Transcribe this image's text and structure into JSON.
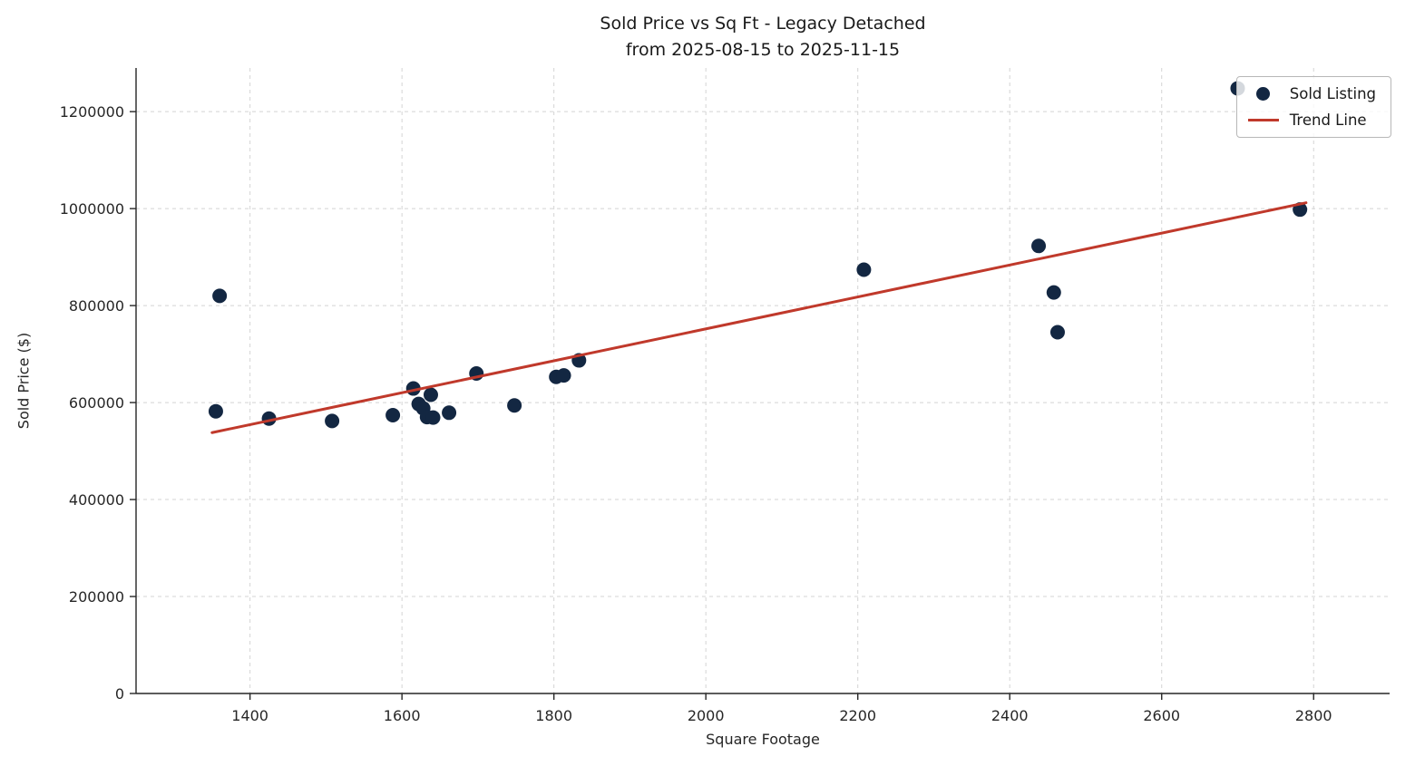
{
  "chart_data": {
    "type": "scatter",
    "title": "Sold Price vs Sq Ft - Legacy Detached\nfrom 2025-08-15 to 2025-11-15",
    "title_line1": "Sold Price vs Sq Ft - Legacy Detached",
    "title_line2": "from 2025-08-15 to 2025-11-15",
    "xlabel": "Square Footage",
    "ylabel": "Sold Price ($)",
    "xlim": [
      1250,
      2900
    ],
    "ylim": [
      0,
      1290000
    ],
    "xticks": [
      1400,
      1600,
      1800,
      2000,
      2200,
      2400,
      2600,
      2800
    ],
    "yticks": [
      0,
      200000,
      400000,
      600000,
      800000,
      1000000,
      1200000
    ],
    "grid": true,
    "grid_style": "dashed",
    "legend": {
      "position": "upper right",
      "entries": [
        {
          "label": "Sold Listing",
          "type": "marker",
          "color": "#132742"
        },
        {
          "label": "Trend Line",
          "type": "line",
          "color": "#c0392b"
        }
      ]
    },
    "series": [
      {
        "name": "Sold Listing",
        "type": "scatter",
        "color": "#132742",
        "marker_radius": 8,
        "points": [
          [
            1355,
            582000
          ],
          [
            1360,
            820000
          ],
          [
            1425,
            567000
          ],
          [
            1508,
            562000
          ],
          [
            1588,
            574000
          ],
          [
            1615,
            629000
          ],
          [
            1622,
            597000
          ],
          [
            1628,
            588000
          ],
          [
            1633,
            570000
          ],
          [
            1641,
            569000
          ],
          [
            1638,
            616000
          ],
          [
            1662,
            579000
          ],
          [
            1698,
            660000
          ],
          [
            1748,
            594000
          ],
          [
            1803,
            653000
          ],
          [
            1813,
            656000
          ],
          [
            1833,
            687000
          ],
          [
            2208,
            874000
          ],
          [
            2438,
            923000
          ],
          [
            2458,
            827000
          ],
          [
            2463,
            745000
          ],
          [
            2700,
            1248000
          ],
          [
            2782,
            998000
          ]
        ]
      },
      {
        "name": "Trend Line",
        "type": "line",
        "color": "#c0392b",
        "stroke_width": 3,
        "points": [
          [
            1350,
            538000
          ],
          [
            2790,
            1012000
          ]
        ]
      }
    ]
  }
}
